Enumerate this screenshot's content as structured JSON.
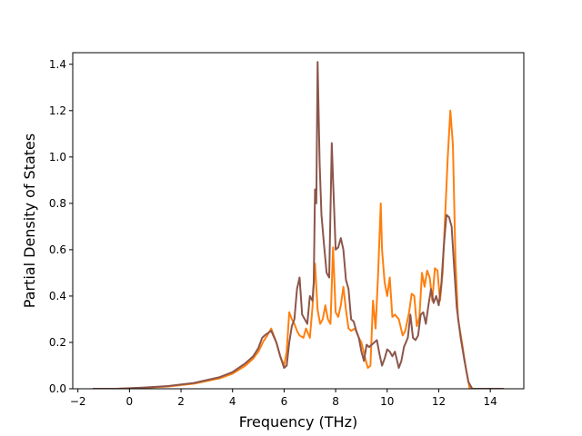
{
  "chart_data": {
    "type": "line",
    "title": "",
    "xlabel": "Frequency (THz)",
    "ylabel": "Partial Density of States",
    "xlim": [
      -2.2,
      15.3
    ],
    "ylim": [
      0,
      1.45
    ],
    "xticks": [
      -2,
      0,
      2,
      4,
      6,
      8,
      10,
      12,
      14
    ],
    "xtick_labels": [
      "−2",
      "0",
      "2",
      "4",
      "6",
      "8",
      "10",
      "12",
      "14"
    ],
    "yticks": [
      0.0,
      0.2,
      0.4,
      0.6,
      0.8,
      1.0,
      1.2,
      1.4
    ],
    "ytick_labels": [
      "0.0",
      "0.2",
      "0.4",
      "0.6",
      "0.8",
      "1.0",
      "1.2",
      "1.4"
    ],
    "grid": false,
    "legend": "none",
    "series": [
      {
        "color": "#ff7f0e",
        "x": [
          -1.4,
          -0.5,
          0.5,
          1.5,
          2.5,
          3.5,
          4.0,
          4.5,
          4.8,
          5.0,
          5.2,
          5.35,
          5.5,
          5.7,
          5.85,
          6.0,
          6.1,
          6.2,
          6.3,
          6.4,
          6.5,
          6.6,
          6.75,
          6.85,
          7.0,
          7.1,
          7.2,
          7.3,
          7.4,
          7.5,
          7.6,
          7.7,
          7.8,
          7.9,
          8.0,
          8.1,
          8.2,
          8.3,
          8.4,
          8.5,
          8.6,
          8.75,
          8.9,
          9.0,
          9.15,
          9.25,
          9.35,
          9.45,
          9.55,
          9.65,
          9.75,
          9.8,
          9.9,
          10.0,
          10.1,
          10.2,
          10.3,
          10.45,
          10.6,
          10.7,
          10.85,
          10.95,
          11.05,
          11.15,
          11.25,
          11.35,
          11.45,
          11.55,
          11.65,
          11.75,
          11.85,
          11.95,
          12.05,
          12.15,
          12.25,
          12.35,
          12.45,
          12.55,
          12.65,
          12.75,
          12.9,
          13.05,
          13.2,
          13.35,
          13.6,
          14.5
        ],
        "y": [
          0.0,
          0.0,
          0.004,
          0.01,
          0.022,
          0.045,
          0.065,
          0.1,
          0.13,
          0.16,
          0.205,
          0.23,
          0.26,
          0.2,
          0.14,
          0.1,
          0.16,
          0.33,
          0.3,
          0.28,
          0.25,
          0.23,
          0.22,
          0.26,
          0.22,
          0.35,
          0.54,
          0.34,
          0.28,
          0.3,
          0.36,
          0.3,
          0.28,
          0.61,
          0.33,
          0.31,
          0.36,
          0.44,
          0.34,
          0.26,
          0.25,
          0.26,
          0.22,
          0.2,
          0.13,
          0.09,
          0.1,
          0.38,
          0.26,
          0.5,
          0.8,
          0.6,
          0.46,
          0.4,
          0.48,
          0.31,
          0.32,
          0.3,
          0.23,
          0.25,
          0.33,
          0.41,
          0.4,
          0.27,
          0.31,
          0.5,
          0.44,
          0.51,
          0.48,
          0.38,
          0.52,
          0.51,
          0.38,
          0.5,
          0.75,
          1.0,
          1.2,
          1.05,
          0.55,
          0.3,
          0.2,
          0.09,
          0.0,
          0.0,
          0.0,
          0.0
        ]
      },
      {
        "color": "#8c564b",
        "x": [
          -1.4,
          -0.5,
          0.5,
          1.5,
          2.5,
          3.5,
          4.0,
          4.5,
          4.8,
          5.0,
          5.15,
          5.3,
          5.5,
          5.7,
          5.85,
          6.0,
          6.1,
          6.2,
          6.3,
          6.4,
          6.5,
          6.6,
          6.7,
          6.8,
          6.9,
          7.0,
          7.1,
          7.15,
          7.2,
          7.25,
          7.3,
          7.38,
          7.45,
          7.55,
          7.65,
          7.75,
          7.85,
          7.9,
          8.0,
          8.1,
          8.2,
          8.3,
          8.4,
          8.5,
          8.6,
          8.7,
          8.8,
          8.9,
          9.0,
          9.1,
          9.2,
          9.3,
          9.4,
          9.5,
          9.6,
          9.7,
          9.8,
          9.9,
          10.0,
          10.1,
          10.2,
          10.3,
          10.45,
          10.55,
          10.65,
          10.8,
          10.9,
          11.0,
          11.1,
          11.2,
          11.3,
          11.4,
          11.5,
          11.6,
          11.7,
          11.8,
          11.9,
          12.0,
          12.1,
          12.2,
          12.3,
          12.4,
          12.5,
          12.6,
          12.7,
          12.85,
          13.0,
          13.15,
          13.3,
          13.6,
          14.5
        ],
        "y": [
          0.0,
          0.0,
          0.005,
          0.012,
          0.025,
          0.05,
          0.072,
          0.11,
          0.14,
          0.175,
          0.22,
          0.235,
          0.25,
          0.2,
          0.14,
          0.09,
          0.1,
          0.2,
          0.27,
          0.3,
          0.43,
          0.48,
          0.32,
          0.3,
          0.28,
          0.4,
          0.38,
          0.46,
          0.86,
          0.8,
          1.41,
          0.97,
          0.75,
          0.62,
          0.5,
          0.48,
          1.06,
          0.9,
          0.6,
          0.61,
          0.65,
          0.6,
          0.47,
          0.43,
          0.3,
          0.29,
          0.25,
          0.22,
          0.16,
          0.12,
          0.19,
          0.18,
          0.19,
          0.2,
          0.21,
          0.15,
          0.1,
          0.13,
          0.17,
          0.16,
          0.14,
          0.16,
          0.09,
          0.12,
          0.18,
          0.22,
          0.32,
          0.22,
          0.21,
          0.23,
          0.32,
          0.33,
          0.28,
          0.36,
          0.43,
          0.37,
          0.4,
          0.36,
          0.45,
          0.62,
          0.75,
          0.74,
          0.7,
          0.52,
          0.35,
          0.22,
          0.12,
          0.03,
          0.0,
          0.0,
          0.0
        ]
      }
    ]
  }
}
